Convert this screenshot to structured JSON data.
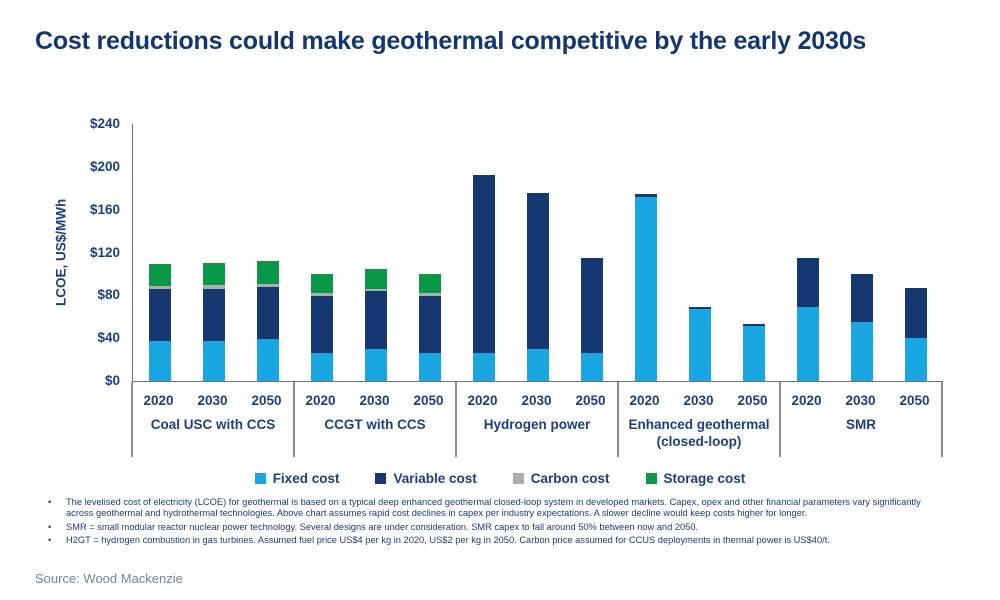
{
  "title": "Cost reductions could make geothermal competitive by the early 2030s",
  "source": "Source: Wood Mackenzie",
  "footnotes": [
    "The levelised cost of electricity (LCOE) for geothermal is based on a typical deep enhanced geothermal closed-loop system in developed markets. Capex, opex and other financial parameters vary significantly across geothermal and hydrothermal technologies. Above chart assumes rapid cost declines in capex per industry expectations. A slower decline would keep costs higher for longer.",
    "SMR = small modular reactor nuclear power technology. Several designs are under consideration. SMR capex to fall around 50% between now and 2050.",
    "H2GT = hydrogen combustion in gas turbines. Assumed fuel price US$4 per kg in 2020, US$2 per kg in 2050. Carbon price assumed for CCUS deployments in thermal power is US$40/t."
  ],
  "colors": {
    "title_navy": "#12366E",
    "axis_text_navy": "#1B3F85",
    "footnote_navy": "#1B3C7D",
    "axis_line_gray": "#6E7276",
    "fixed_cost_blue": "#1AA7E1",
    "variable_cost_navy": "#14386F",
    "carbon_cost_gray": "#ABADB0",
    "storage_cost_green": "#0A9748",
    "source_gray": "#76839E"
  },
  "chart_data": {
    "type": "bar",
    "stacked": true,
    "title": "Cost reductions could make geothermal competitive by the early 2030s",
    "xlabel": "",
    "ylabel": "LCOE, US$/MWh",
    "ylim": [
      0,
      240
    ],
    "grid": false,
    "legend_position": "bottom",
    "yticks": [
      {
        "label": "$0",
        "value": 0
      },
      {
        "label": "$40",
        "value": 40
      },
      {
        "label": "$80",
        "value": 80
      },
      {
        "label": "$120",
        "value": 120
      },
      {
        "label": "$160",
        "value": 160
      },
      {
        "label": "$200",
        "value": 200
      },
      {
        "label": "$240",
        "value": 240
      }
    ],
    "groups": [
      {
        "label": "Coal USC with CCS",
        "years": [
          "2020",
          "2030",
          "2050"
        ]
      },
      {
        "label": "CCGT with CCS",
        "years": [
          "2020",
          "2030",
          "2050"
        ]
      },
      {
        "label": "Hydrogen power",
        "years": [
          "2020",
          "2030",
          "2050"
        ]
      },
      {
        "label": "Enhanced geothermal (closed-loop)",
        "years": [
          "2020",
          "2030",
          "2050"
        ]
      },
      {
        "label": "SMR",
        "years": [
          "2020",
          "2030",
          "2050"
        ]
      }
    ],
    "series": [
      {
        "name": "Fixed cost",
        "color": "#1AA7E1",
        "values": [
          37,
          37,
          39,
          26,
          30,
          26,
          26,
          30,
          26,
          172,
          67,
          51,
          69,
          55,
          40
        ]
      },
      {
        "name": "Variable cost",
        "color": "#14386F",
        "values": [
          49,
          49,
          49,
          53,
          54,
          53,
          166,
          146,
          89,
          3,
          2,
          2,
          46,
          45,
          47
        ]
      },
      {
        "name": "Carbon cost",
        "color": "#ABADB0",
        "values": [
          3,
          4,
          3,
          3,
          2,
          3,
          0,
          0,
          0,
          0,
          0,
          0,
          0,
          0,
          0
        ]
      },
      {
        "name": "Storage cost",
        "color": "#0A9748",
        "values": [
          20,
          20,
          21,
          18,
          19,
          18,
          0,
          0,
          0,
          0,
          0,
          0,
          0,
          0,
          0
        ]
      }
    ],
    "totals": [
      109,
      110,
      112,
      100,
      105,
      100,
      192,
      176,
      115,
      175,
      69,
      53,
      115,
      100,
      87
    ]
  }
}
